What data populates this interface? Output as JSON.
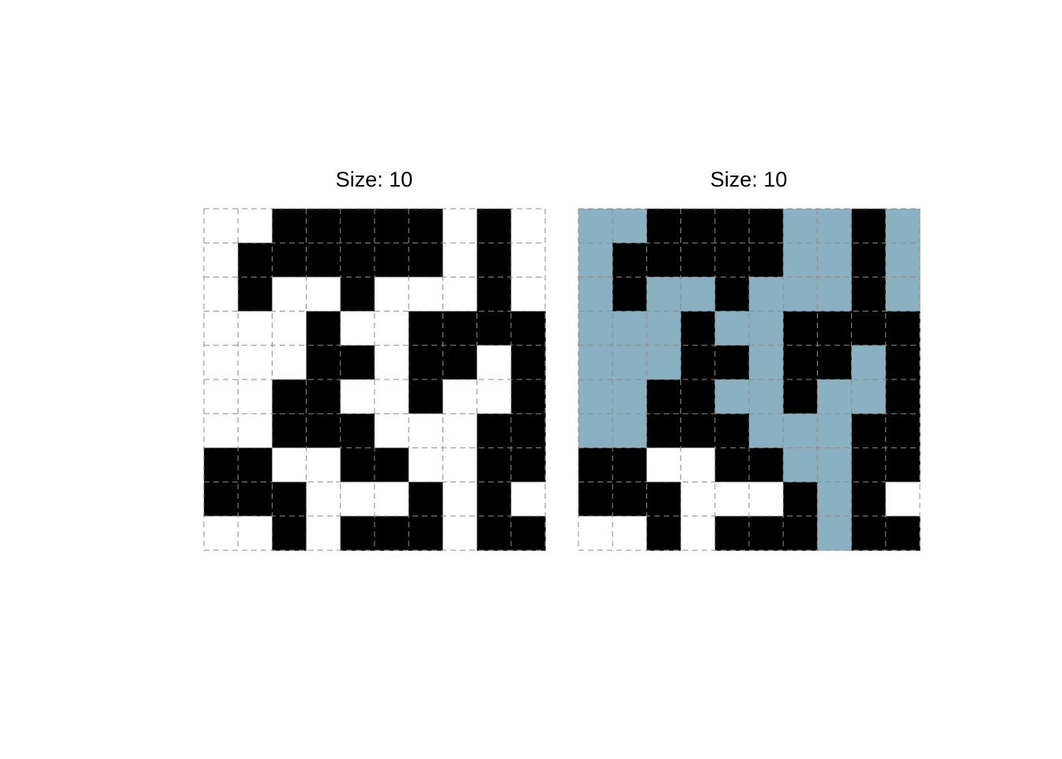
{
  "colors": {
    "background": "#ffffff",
    "blocked": "#000000",
    "open": "#ffffff",
    "filled": "#8ab1c2",
    "grid_line": "#8c8c8c"
  },
  "panels": [
    {
      "title": "Size: 10",
      "grid": [
        "0011111010",
        "0111111010",
        "0100100010",
        "0001001111",
        "0001101101",
        "0011001001",
        "0011100011",
        "1100110011",
        "1110001010",
        "0010111011"
      ]
    },
    {
      "title": "Size: 10",
      "grid": [
        "2211112212",
        "2111112212",
        "2122122212",
        "2221221111",
        "2221121121",
        "2211221221",
        "2211122211",
        "1100112211",
        "1110001210",
        "0010111211"
      ]
    }
  ]
}
